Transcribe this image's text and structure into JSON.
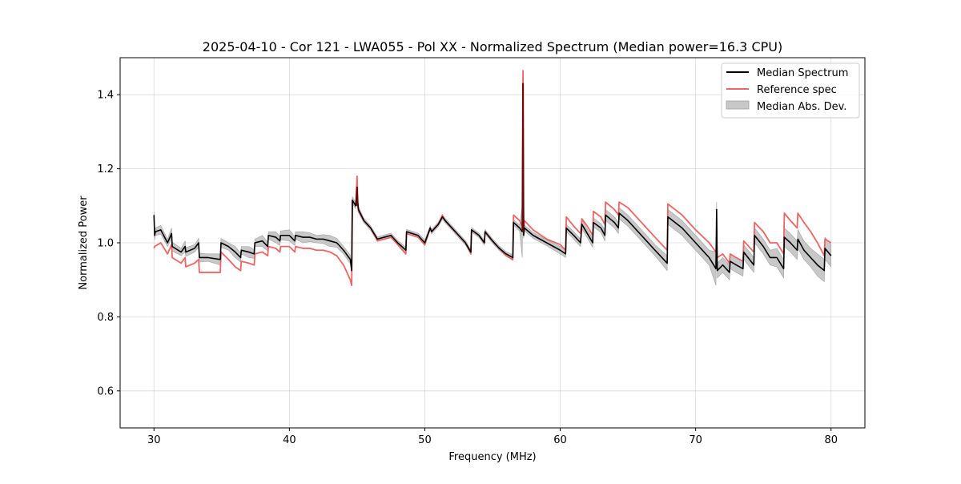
{
  "chart_data": {
    "type": "line",
    "title": "2025-04-10 - Cor 121 - LWA055 - Pol XX - Normalized Spectrum (Median power=16.3 CPU)",
    "xlabel": "Frequency (MHz)",
    "ylabel": "Normalized Power",
    "xlim": [
      27.5,
      82.5
    ],
    "ylim": [
      0.5,
      1.5
    ],
    "xticks": [
      30,
      40,
      50,
      60,
      70,
      80
    ],
    "yticks": [
      0.6,
      0.8,
      1.0,
      1.2,
      1.4
    ],
    "grid": true,
    "legend_position": "upper right",
    "legend": [
      "Median Spectrum",
      "Reference spec",
      "Median Abs. Dev."
    ],
    "colors": {
      "median": "#000000",
      "reference": "#ef6464",
      "mad_fill": "#c8c8c8",
      "mad_edge": "#a0a0a0",
      "overlap": "#7a0000"
    },
    "series": [
      {
        "name": "Median Spectrum",
        "x": [
          30.0,
          30.05,
          30.1,
          30.5,
          31.0,
          31.3,
          31.35,
          32.0,
          32.3,
          32.35,
          33.0,
          33.3,
          33.35,
          34.0,
          34.9,
          34.95,
          35.5,
          36.0,
          36.4,
          36.45,
          37.0,
          37.4,
          37.45,
          38.0,
          38.4,
          38.45,
          39.0,
          39.3,
          39.35,
          40.0,
          40.4,
          40.45,
          41.0,
          41.5,
          42.0,
          42.5,
          43.0,
          43.5,
          44.0,
          44.5,
          44.6,
          44.65,
          44.9,
          45.0,
          45.05,
          45.1,
          45.5,
          46.0,
          46.5,
          47.0,
          47.5,
          48.0,
          48.6,
          48.65,
          49.5,
          50.0,
          50.4,
          50.5,
          51.0,
          51.3,
          51.5,
          52.0,
          53.0,
          53.4,
          53.45,
          54.0,
          54.4,
          54.45,
          55.0,
          55.5,
          56.0,
          56.5,
          56.55,
          57.0,
          57.2,
          57.25,
          57.3,
          57.35,
          58.0,
          59.0,
          60.0,
          60.4,
          60.45,
          61.0,
          61.5,
          61.6,
          62.0,
          62.4,
          62.45,
          63.0,
          63.3,
          63.35,
          64.0,
          64.3,
          64.35,
          65.0,
          66.0,
          67.0,
          67.9,
          67.95,
          69.0,
          70.0,
          71.0,
          71.5,
          71.55,
          71.6,
          72.0,
          72.5,
          72.55,
          73.0,
          73.5,
          73.55,
          74.3,
          74.35,
          75.0,
          75.5,
          76.0,
          76.5,
          76.55,
          77.0,
          77.5,
          77.55,
          78.0,
          78.5,
          79.0,
          79.5,
          79.55,
          80.0
        ],
        "y": [
          1.075,
          1.02,
          1.03,
          1.035,
          1.0,
          1.025,
          0.99,
          0.975,
          0.99,
          0.975,
          0.985,
          1.0,
          0.96,
          0.96,
          0.955,
          1.0,
          0.99,
          0.975,
          0.96,
          0.98,
          0.975,
          0.97,
          1.0,
          1.005,
          0.99,
          1.02,
          1.015,
          1.005,
          1.02,
          1.02,
          1.005,
          1.02,
          1.015,
          1.015,
          1.01,
          1.01,
          1.005,
          1.0,
          0.98,
          0.955,
          0.925,
          1.115,
          1.1,
          1.15,
          1.11,
          1.09,
          1.06,
          1.04,
          1.01,
          1.015,
          1.02,
          1.0,
          0.98,
          1.03,
          1.02,
          1.0,
          1.04,
          1.03,
          1.05,
          1.07,
          1.06,
          1.04,
          1.0,
          0.975,
          1.035,
          1.02,
          1.0,
          1.03,
          1.005,
          0.985,
          0.97,
          0.96,
          1.055,
          1.04,
          1.03,
          1.43,
          1.02,
          1.04,
          1.02,
          1.0,
          0.98,
          0.97,
          1.04,
          1.02,
          1.0,
          1.05,
          1.025,
          1.0,
          1.055,
          1.04,
          1.02,
          1.075,
          1.055,
          1.04,
          1.08,
          1.06,
          1.02,
          0.98,
          0.945,
          1.07,
          1.04,
          1.0,
          0.96,
          0.93,
          1.09,
          0.925,
          0.94,
          0.92,
          0.95,
          0.94,
          0.93,
          0.975,
          0.94,
          1.02,
          0.99,
          0.96,
          0.96,
          0.93,
          1.015,
          1.0,
          0.98,
          1.01,
          0.98,
          0.96,
          0.94,
          0.925,
          0.985,
          0.965
        ]
      },
      {
        "name": "Reference spec",
        "x": [
          30.0,
          30.05,
          30.5,
          31.0,
          31.3,
          31.35,
          32.0,
          32.3,
          32.35,
          33.0,
          33.3,
          33.35,
          34.0,
          34.9,
          34.95,
          35.5,
          36.0,
          36.4,
          36.45,
          37.0,
          37.4,
          37.45,
          38.0,
          38.4,
          38.45,
          39.0,
          39.3,
          39.35,
          40.0,
          40.4,
          40.45,
          41.0,
          41.5,
          42.0,
          42.5,
          43.0,
          43.5,
          44.0,
          44.5,
          44.6,
          44.65,
          44.9,
          45.0,
          45.05,
          45.1,
          45.5,
          46.0,
          46.5,
          47.0,
          47.5,
          48.0,
          48.6,
          48.65,
          49.5,
          50.0,
          50.4,
          50.5,
          51.0,
          51.3,
          51.5,
          52.0,
          53.0,
          53.4,
          53.45,
          54.0,
          54.4,
          54.45,
          55.0,
          55.5,
          56.0,
          56.5,
          56.55,
          57.0,
          57.2,
          57.25,
          57.3,
          57.35,
          58.0,
          59.0,
          60.0,
          60.4,
          60.45,
          61.0,
          61.5,
          61.6,
          62.0,
          62.4,
          62.45,
          63.0,
          63.3,
          63.35,
          64.0,
          64.3,
          64.35,
          65.0,
          66.0,
          67.0,
          67.9,
          67.95,
          69.0,
          70.0,
          71.0,
          71.5,
          71.55,
          71.6,
          72.0,
          72.5,
          72.55,
          73.0,
          73.5,
          73.55,
          74.3,
          74.35,
          75.0,
          75.5,
          76.0,
          76.5,
          76.55,
          77.0,
          77.5,
          77.55,
          78.0,
          78.5,
          79.0,
          79.5,
          79.55,
          80.0
        ],
        "y": [
          0.985,
          0.99,
          1.0,
          0.97,
          0.995,
          0.96,
          0.945,
          0.96,
          0.935,
          0.945,
          0.955,
          0.92,
          0.92,
          0.92,
          0.975,
          0.955,
          0.935,
          0.925,
          0.95,
          0.945,
          0.94,
          0.97,
          0.975,
          0.965,
          0.99,
          0.985,
          0.975,
          0.99,
          0.99,
          0.975,
          0.99,
          0.985,
          0.985,
          0.98,
          0.98,
          0.975,
          0.965,
          0.94,
          0.9,
          0.885,
          1.115,
          1.1,
          1.18,
          1.1,
          1.085,
          1.06,
          1.04,
          1.005,
          1.01,
          1.015,
          0.995,
          0.97,
          1.025,
          1.015,
          0.995,
          1.04,
          1.03,
          1.05,
          1.075,
          1.06,
          1.04,
          1.0,
          0.97,
          1.035,
          1.02,
          1.0,
          1.03,
          1.005,
          0.985,
          0.965,
          0.955,
          1.075,
          1.06,
          1.045,
          1.465,
          1.03,
          1.06,
          1.035,
          1.01,
          0.995,
          0.98,
          1.07,
          1.045,
          1.025,
          1.065,
          1.045,
          1.02,
          1.085,
          1.07,
          1.05,
          1.11,
          1.09,
          1.075,
          1.11,
          1.095,
          1.055,
          1.015,
          0.98,
          1.105,
          1.075,
          1.035,
          1.0,
          0.975,
          1.0,
          0.96,
          0.97,
          0.945,
          0.97,
          0.96,
          0.95,
          1.005,
          0.975,
          1.055,
          1.03,
          1.0,
          1.0,
          0.97,
          1.08,
          1.06,
          1.04,
          1.08,
          1.055,
          1.03,
          1.0,
          0.965,
          1.01,
          1.0
        ]
      }
    ],
    "mad_band": {
      "name": "Median Abs. Dev.",
      "halfwidth": [
        0.01,
        0.012,
        0.01,
        0.012,
        0.01,
        0.015,
        0.012,
        0.01,
        0.015,
        0.012,
        0.01,
        0.012,
        0.012,
        0.01,
        0.015,
        0.012,
        0.01,
        0.015,
        0.012,
        0.01,
        0.015,
        0.012,
        0.01,
        0.015,
        0.012,
        0.01,
        0.015,
        0.012,
        0.012,
        0.015,
        0.012,
        0.01,
        0.015,
        0.012,
        0.01,
        0.012,
        0.015,
        0.012,
        0.01,
        0.012,
        0.008,
        0.01,
        0.008,
        0.012,
        0.01,
        0.008,
        0.006,
        0.006,
        0.006,
        0.006,
        0.006,
        0.006,
        0.008,
        0.006,
        0.006,
        0.008,
        0.006,
        0.006,
        0.006,
        0.006,
        0.006,
        0.006,
        0.006,
        0.006,
        0.006,
        0.006,
        0.006,
        0.006,
        0.006,
        0.006,
        0.006,
        0.008,
        0.008,
        0.008,
        0.07,
        0.008,
        0.008,
        0.008,
        0.008,
        0.008,
        0.01,
        0.01,
        0.01,
        0.01,
        0.01,
        0.012,
        0.012,
        0.012,
        0.012,
        0.012,
        0.015,
        0.015,
        0.015,
        0.015,
        0.015,
        0.015,
        0.015,
        0.015,
        0.02,
        0.02,
        0.02,
        0.02,
        0.02,
        0.045,
        0.02,
        0.02,
        0.02,
        0.02,
        0.02,
        0.02,
        0.02,
        0.02,
        0.02,
        0.02,
        0.02,
        0.02,
        0.025,
        0.025,
        0.025,
        0.025,
        0.025,
        0.025,
        0.025,
        0.025,
        0.03,
        0.03,
        0.03,
        0.03
      ]
    }
  }
}
